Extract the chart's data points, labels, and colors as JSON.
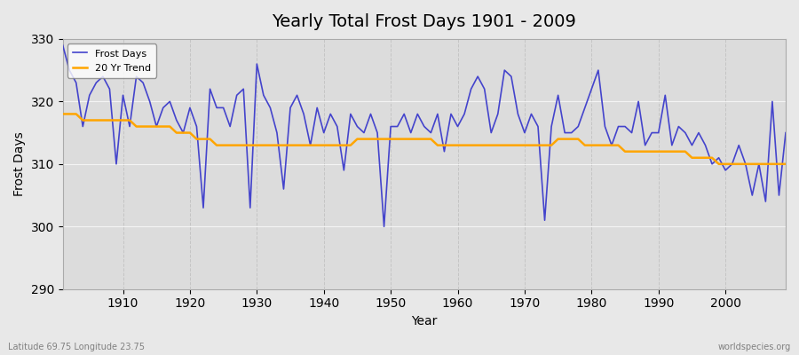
{
  "title": "Yearly Total Frost Days 1901 - 2009",
  "xlabel": "Year",
  "ylabel": "Frost Days",
  "bottom_left_label": "Latitude 69.75 Longitude 23.75",
  "bottom_right_label": "worldspecies.org",
  "ylim": [
    290,
    330
  ],
  "xlim": [
    1901,
    2009
  ],
  "yticks": [
    290,
    300,
    310,
    320,
    330
  ],
  "xticks": [
    1910,
    1920,
    1930,
    1940,
    1950,
    1960,
    1970,
    1980,
    1990,
    2000
  ],
  "frost_color": "#4444cc",
  "trend_color": "#FFA500",
  "bg_color": "#e8e8e8",
  "plot_bg_color": "#dcdcdc",
  "grid_color": "#ffffff",
  "years": [
    1901,
    1902,
    1903,
    1904,
    1905,
    1906,
    1907,
    1908,
    1909,
    1910,
    1911,
    1912,
    1913,
    1914,
    1915,
    1916,
    1917,
    1918,
    1919,
    1920,
    1921,
    1922,
    1923,
    1924,
    1925,
    1926,
    1927,
    1928,
    1929,
    1930,
    1931,
    1932,
    1933,
    1934,
    1935,
    1936,
    1937,
    1938,
    1939,
    1940,
    1941,
    1942,
    1943,
    1944,
    1945,
    1946,
    1947,
    1948,
    1949,
    1950,
    1951,
    1952,
    1953,
    1954,
    1955,
    1956,
    1957,
    1958,
    1959,
    1960,
    1961,
    1962,
    1963,
    1964,
    1965,
    1966,
    1967,
    1968,
    1969,
    1970,
    1971,
    1972,
    1973,
    1974,
    1975,
    1976,
    1977,
    1978,
    1979,
    1980,
    1981,
    1982,
    1983,
    1984,
    1985,
    1986,
    1987,
    1988,
    1989,
    1990,
    1991,
    1992,
    1993,
    1994,
    1995,
    1996,
    1997,
    1998,
    1999,
    2000,
    2001,
    2002,
    2003,
    2004,
    2005,
    2006,
    2007,
    2008,
    2009
  ],
  "frost_days": [
    329,
    325,
    323,
    316,
    321,
    323,
    324,
    322,
    310,
    321,
    316,
    324,
    323,
    320,
    316,
    319,
    320,
    317,
    315,
    319,
    316,
    303,
    322,
    319,
    319,
    316,
    321,
    322,
    303,
    326,
    321,
    319,
    315,
    306,
    319,
    321,
    318,
    313,
    319,
    315,
    318,
    316,
    309,
    318,
    316,
    315,
    318,
    315,
    300,
    316,
    316,
    318,
    315,
    318,
    316,
    315,
    318,
    312,
    318,
    316,
    318,
    322,
    324,
    322,
    315,
    318,
    325,
    324,
    318,
    315,
    318,
    316,
    301,
    316,
    321,
    315,
    315,
    316,
    319,
    322,
    325,
    316,
    313,
    316,
    316,
    315,
    320,
    313,
    315,
    315,
    321,
    313,
    316,
    315,
    313,
    315,
    313,
    310,
    311,
    309,
    310,
    313,
    310,
    305,
    310,
    304,
    320,
    305,
    315
  ],
  "trend_years": [
    1901,
    1902,
    1903,
    1904,
    1905,
    1906,
    1907,
    1908,
    1909,
    1910,
    1911,
    1912,
    1913,
    1914,
    1915,
    1916,
    1917,
    1918,
    1919,
    1920,
    1921,
    1922,
    1923,
    1924,
    1925,
    1926,
    1927,
    1928,
    1929,
    1930,
    1931,
    1932,
    1933,
    1934,
    1935,
    1936,
    1937,
    1938,
    1939,
    1940,
    1941,
    1942,
    1943,
    1944,
    1945,
    1946,
    1947,
    1948,
    1949,
    1950,
    1951,
    1952,
    1953,
    1954,
    1955,
    1956,
    1957,
    1958,
    1959,
    1960,
    1961,
    1962,
    1963,
    1964,
    1965,
    1966,
    1967,
    1968,
    1969,
    1970,
    1971,
    1972,
    1973,
    1974,
    1975,
    1976,
    1977,
    1978,
    1979,
    1980,
    1981,
    1982,
    1983,
    1984,
    1985,
    1986,
    1987,
    1988,
    1989,
    1990,
    1991,
    1992,
    1993,
    1994,
    1995,
    1996,
    1997,
    1998,
    1999,
    2000,
    2001,
    2002,
    2003,
    2004,
    2005,
    2006,
    2007,
    2008,
    2009
  ],
  "trend_days": [
    318,
    318,
    318,
    317,
    317,
    317,
    317,
    317,
    317,
    317,
    317,
    316,
    316,
    316,
    316,
    316,
    316,
    315,
    315,
    315,
    314,
    314,
    314,
    313,
    313,
    313,
    313,
    313,
    313,
    313,
    313,
    313,
    313,
    313,
    313,
    313,
    313,
    313,
    313,
    313,
    313,
    313,
    313,
    313,
    314,
    314,
    314,
    314,
    314,
    314,
    314,
    314,
    314,
    314,
    314,
    314,
    313,
    313,
    313,
    313,
    313,
    313,
    313,
    313,
    313,
    313,
    313,
    313,
    313,
    313,
    313,
    313,
    313,
    313,
    314,
    314,
    314,
    314,
    313,
    313,
    313,
    313,
    313,
    313,
    312,
    312,
    312,
    312,
    312,
    312,
    312,
    312,
    312,
    312,
    311,
    311,
    311,
    311,
    310,
    310,
    310,
    310,
    310,
    310,
    310,
    310,
    310,
    310,
    310
  ]
}
